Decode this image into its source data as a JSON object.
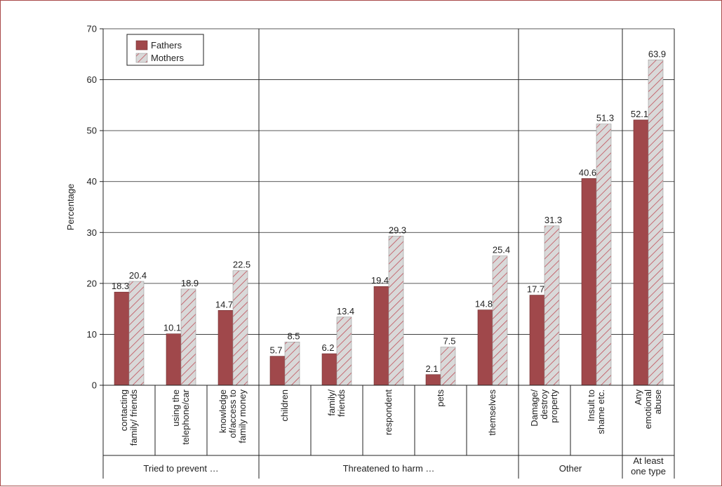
{
  "chart_data": {
    "type": "bar",
    "title": "",
    "xlabel": "",
    "ylabel": "Percentage",
    "ylim": [
      0,
      70
    ],
    "yticks": [
      "0",
      "10",
      "20",
      "30",
      "40",
      "50",
      "60",
      "70"
    ],
    "grid": "horizontal",
    "legend_position": "top-left",
    "series": [
      {
        "name": "Fathers",
        "color": "#a0484b",
        "pattern": "solid",
        "values": [
          18.3,
          10.1,
          14.7,
          5.7,
          6.2,
          19.4,
          2.1,
          14.8,
          17.7,
          40.6,
          52.1
        ]
      },
      {
        "name": "Mothers",
        "color": "#d9d9d9",
        "pattern": "hatched",
        "hatch_color": "#c0505a",
        "values": [
          20.4,
          18.9,
          22.5,
          8.5,
          13.4,
          29.3,
          7.5,
          25.4,
          31.3,
          51.3,
          63.9
        ]
      }
    ],
    "value_labels": {
      "fathers": [
        "18.3",
        "10.1",
        "14.7",
        "5.7",
        "6.2",
        "19.4",
        "2.1",
        "14.8",
        "17.7",
        "40.6",
        "52.1"
      ],
      "mothers": [
        "20.4",
        "18.9",
        "22.5",
        "8.5",
        "13.4",
        "29.3",
        "7.5",
        "25.4",
        "31.3",
        "51.3",
        "63.9"
      ]
    },
    "categories": [
      [
        "contacting",
        "family/ friends"
      ],
      [
        "using the",
        "telephone/car"
      ],
      [
        "knowledge",
        "of/access to",
        "family money"
      ],
      [
        "children"
      ],
      [
        "family/",
        "friends"
      ],
      [
        "respondent"
      ],
      [
        "pets"
      ],
      [
        "themselves"
      ],
      [
        "Damage/",
        "destroy",
        "property"
      ],
      [
        "Insult to",
        "shame etc."
      ],
      [
        "Any",
        "emotional",
        "abuse"
      ]
    ],
    "groups": [
      {
        "label": [
          "Tried to prevent …"
        ],
        "count": 3
      },
      {
        "label": [
          "Threatened to harm …"
        ],
        "count": 5
      },
      {
        "label": [
          "Other"
        ],
        "count": 2
      },
      {
        "label": [
          "At least",
          "one type"
        ],
        "count": 1
      }
    ]
  }
}
